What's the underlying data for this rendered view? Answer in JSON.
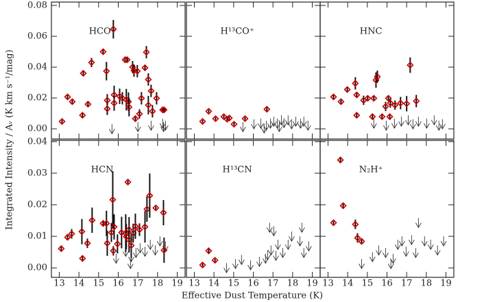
{
  "xlabel": "Effective Dust Temperature (K)",
  "ylabel": "Integrated Intensity / Aᵥ (K km s⁻¹/mag)",
  "chart_data": [
    {
      "type": "scatter",
      "title": "HCO⁺",
      "color": "#cc0000",
      "xlim": [
        12.6,
        19.4
      ],
      "xticks": [
        13,
        14,
        15,
        16,
        17,
        18,
        19
      ],
      "ylim": [
        -0.0066,
        0.0822
      ],
      "yticks": [
        {
          "value": 0,
          "label": "0.00"
        },
        0.02,
        0.04,
        0.06,
        0.08
      ],
      "x": [
        13.14,
        13.42,
        13.66,
        14.18,
        14.22,
        14.46,
        14.64,
        15.23,
        15.4,
        15.44,
        15.44,
        15.75,
        15.79,
        15.79,
        16.07,
        16.21,
        16.35,
        16.45,
        16.41,
        16.52,
        16.55,
        16.73,
        16.8,
        16.87,
        16.97,
        17.08,
        17.18,
        17.36,
        17.43,
        17.53,
        17.53,
        17.67,
        17.74,
        17.95,
        18.26,
        18.33
      ],
      "values": [
        0.0048,
        0.0207,
        0.0176,
        0.0088,
        0.036,
        0.016,
        0.043,
        0.05,
        0.0374,
        0.0185,
        0.013,
        0.0646,
        0.022,
        0.0167,
        0.0211,
        0.0198,
        0.0448,
        0.0448,
        0.0189,
        0.0176,
        0.0141,
        0.04,
        0.0378,
        0.0066,
        0.0374,
        0.0097,
        0.0198,
        0.0396,
        0.0497,
        0.032,
        0.0154,
        0.0246,
        0.0114,
        0.0198,
        0.0123,
        0.0123
      ],
      "errors": [
        0.001,
        0.0015,
        0.0015,
        0.0015,
        0.0015,
        0.0015,
        0.003,
        0.0015,
        0.006,
        0.004,
        0.004,
        0.006,
        0.006,
        0.005,
        0.005,
        0.004,
        0.002,
        0.002,
        0.007,
        0.006,
        0.006,
        0.004,
        0.004,
        0.002,
        0.004,
        0.003,
        0.004,
        0.002,
        0.004,
        0.004,
        0.006,
        0.004,
        0.004,
        0.004,
        0.001,
        0.001
      ],
      "upper_limits": {
        "color": "#333333",
        "x": [
          15.68,
          17.0,
          17.67,
          18.26,
          18.3,
          18.4
        ],
        "values": [
          0.003,
          0.0044,
          0.0053,
          0.0066,
          0.0044,
          0.0053
        ]
      }
    },
    {
      "type": "scatter",
      "title": "H¹³CO⁺",
      "color": "#cc0000",
      "xlim": [
        12.6,
        19.4
      ],
      "xticks": [
        13,
        14,
        15,
        16,
        17,
        18,
        19
      ],
      "ylim": [
        -0.0066,
        0.0822
      ],
      "yticks": [
        {
          "value": 0,
          "label": "0.00"
        },
        0.02,
        0.04,
        0.06,
        0.08
      ],
      "x": [
        13.42,
        13.73,
        14.08,
        14.5,
        14.78,
        14.67,
        15.02,
        15.58,
        16.69
      ],
      "values": [
        0.0048,
        0.0114,
        0.0066,
        0.0079,
        0.007,
        0.0062,
        0.003,
        0.0066,
        0.0127
      ],
      "errors": [
        0.001,
        0.001,
        0.001,
        0.001,
        0.001,
        0.001,
        0.001,
        0.001,
        0.0015
      ],
      "upper_limits": {
        "color": "#333333",
        "x": [
          15.47,
          16.03,
          16.38,
          16.66,
          16.87,
          17.04,
          17.22,
          17.43,
          17.56,
          17.77,
          17.95,
          18.16,
          18.4,
          18.57,
          18.78,
          16.55,
          17.32
        ],
        "values": [
          0.0044,
          0.0062,
          0.0066,
          0.0053,
          0.0066,
          0.0079,
          0.0066,
          0.0088,
          0.007,
          0.0088,
          0.0062,
          0.0079,
          0.0066,
          0.0079,
          0.0053,
          0.0035,
          0.0044
        ]
      }
    },
    {
      "type": "scatter",
      "title": "HNC",
      "color": "#cc0000",
      "xlim": [
        12.6,
        19.4
      ],
      "xticks": [
        13,
        14,
        15,
        16,
        17,
        18,
        19
      ],
      "ylim": [
        -0.0066,
        0.0822
      ],
      "yticks": [
        {
          "value": 0,
          "label": "0.00"
        },
        0.02,
        0.04,
        0.06,
        0.08
      ],
      "x": [
        13.28,
        13.66,
        13.98,
        14.39,
        14.46,
        14.46,
        14.81,
        15.02,
        15.26,
        15.33,
        15.44,
        15.51,
        15.75,
        15.93,
        16.07,
        16.17,
        16.14,
        16.41,
        16.69,
        17.0,
        17.18,
        17.49
      ],
      "values": [
        0.0207,
        0.0176,
        0.0255,
        0.0295,
        0.022,
        0.0088,
        0.0185,
        0.0198,
        0.0079,
        0.0198,
        0.0316,
        0.0338,
        0.0079,
        0.0145,
        0.0198,
        0.0167,
        0.0079,
        0.0154,
        0.0167,
        0.0163,
        0.0413,
        0.018
      ],
      "errors": [
        0.0015,
        0.0015,
        0.0015,
        0.004,
        0.0015,
        0.0015,
        0.003,
        0.0015,
        0.002,
        0.0015,
        0.005,
        0.004,
        0.0015,
        0.003,
        0.0015,
        0.003,
        0.002,
        0.003,
        0.004,
        0.005,
        0.005,
        0.004
      ],
      "upper_limits": {
        "color": "#333333",
        "x": [
          15.33,
          15.96,
          16.38,
          16.73,
          17.08,
          17.32,
          17.6,
          18.02,
          18.4,
          18.64,
          18.82
        ],
        "values": [
          0.0066,
          0.0053,
          0.0066,
          0.0079,
          0.0088,
          0.0062,
          0.0079,
          0.0066,
          0.0088,
          0.0053,
          0.0062
        ]
      }
    },
    {
      "type": "scatter",
      "title": "HCN",
      "color": "#cc0000",
      "xlim": [
        12.6,
        19.4
      ],
      "xticks": [
        13,
        14,
        15,
        16,
        17,
        18,
        19
      ],
      "ylim": [
        -0.003,
        0.0404
      ],
      "yticks": [
        {
          "value": 0,
          "label": "0.00"
        },
        0.01,
        0.02,
        0.03,
        0.04
      ],
      "x": [
        13.1,
        13.42,
        13.63,
        14.15,
        14.18,
        14.43,
        14.67,
        15.23,
        15.4,
        15.44,
        15.65,
        15.72,
        15.75,
        15.79,
        15.96,
        16.17,
        16.38,
        16.49,
        16.41,
        16.55,
        16.55,
        16.66,
        16.76,
        16.87,
        17.08,
        17.36,
        17.46,
        17.6,
        17.91,
        18.33,
        18.3
      ],
      "values": [
        0.0061,
        0.0097,
        0.0108,
        0.0115,
        0.003,
        0.0078,
        0.0151,
        0.0141,
        0.0141,
        0.0078,
        0.0112,
        0.0216,
        0.0054,
        0.013,
        0.0076,
        0.0112,
        0.011,
        0.0272,
        0.0099,
        0.0121,
        0.0089,
        0.0071,
        0.011,
        0.0132,
        0.0121,
        0.013,
        0.0186,
        0.0229,
        0.019,
        0.0056,
        0.0175
      ],
      "errors": [
        0.0006,
        0.001,
        0.0015,
        0.004,
        0.001,
        0.0015,
        0.004,
        0.001,
        0.004,
        0.004,
        0.003,
        0.009,
        0.0015,
        0.004,
        0.003,
        0.005,
        0.006,
        0.0005,
        0.004,
        0.004,
        0.004,
        0.004,
        0.003,
        0.004,
        0.002,
        0.005,
        0.004,
        0.007,
        0.0005,
        0.004,
        0.004
      ],
      "upper_limits": {
        "color": "#333333",
        "x": [
          15.89,
          16.38,
          16.66,
          16.9,
          17.11,
          17.36,
          17.63,
          17.88,
          18.12,
          18.4,
          16.62
        ],
        "values": [
          0.0045,
          0.0067,
          0.005,
          0.0063,
          0.0078,
          0.0067,
          0.0089,
          0.0071,
          0.01,
          0.0084,
          0.0028
        ]
      }
    },
    {
      "type": "scatter",
      "title": "H¹³CN",
      "color": "#cc0000",
      "xlim": [
        12.6,
        19.4
      ],
      "xticks": [
        13,
        14,
        15,
        16,
        17,
        18,
        19
      ],
      "ylim": [
        -0.003,
        0.0404
      ],
      "yticks": [
        {
          "value": 0,
          "label": "0.00"
        },
        0.01,
        0.02,
        0.03,
        0.04
      ],
      "x": [
        13.42,
        13.73,
        14.05
      ],
      "values": [
        0.0009,
        0.0054,
        0.0024
      ],
      "errors": [
        0.0005,
        0.001,
        0.0005
      ],
      "upper_limits": {
        "color": "#333333",
        "x": [
          14.64,
          15.09,
          15.4,
          15.86,
          16.31,
          16.62,
          16.83,
          16.9,
          17.15,
          17.25,
          17.5,
          17.77,
          17.95,
          18.37,
          18.57,
          18.82,
          16.73,
          17.04,
          18.47
        ],
        "values": [
          0.0015,
          0.0028,
          0.0041,
          0.0024,
          0.0035,
          0.0045,
          0.0143,
          0.0071,
          0.0054,
          0.0089,
          0.0063,
          0.0089,
          0.0115,
          0.01,
          0.0063,
          0.0084,
          0.0056,
          0.0132,
          0.0143
        ]
      }
    },
    {
      "type": "scatter",
      "title": "N₂H⁺",
      "color": "#cc0000",
      "xlim": [
        12.6,
        19.4
      ],
      "xticks": [
        13,
        14,
        15,
        16,
        17,
        18,
        19
      ],
      "ylim": [
        -0.003,
        0.0404
      ],
      "yticks": [
        {
          "value": 0,
          "label": "0.00"
        },
        0.01,
        0.02,
        0.03,
        0.04
      ],
      "x": [
        13.28,
        13.63,
        13.77,
        14.39,
        14.5,
        14.71
      ],
      "values": [
        0.0143,
        0.0342,
        0.0197,
        0.0138,
        0.0095,
        0.0084
      ],
      "errors": [
        0.0005,
        0.001,
        0.001,
        0.0015,
        0.0015,
        0.001
      ],
      "upper_limits": {
        "color": "#333333",
        "x": [
          14.71,
          15.26,
          15.58,
          15.93,
          16.31,
          16.55,
          16.76,
          16.97,
          17.25,
          17.6,
          17.91,
          18.22,
          18.57,
          18.88,
          16.2,
          17.46
        ],
        "values": [
          0.0028,
          0.005,
          0.0071,
          0.0063,
          0.0045,
          0.0089,
          0.01,
          0.0067,
          0.0104,
          0.0158,
          0.01,
          0.0089,
          0.0071,
          0.01,
          0.0028,
          0.0063
        ]
      }
    }
  ]
}
